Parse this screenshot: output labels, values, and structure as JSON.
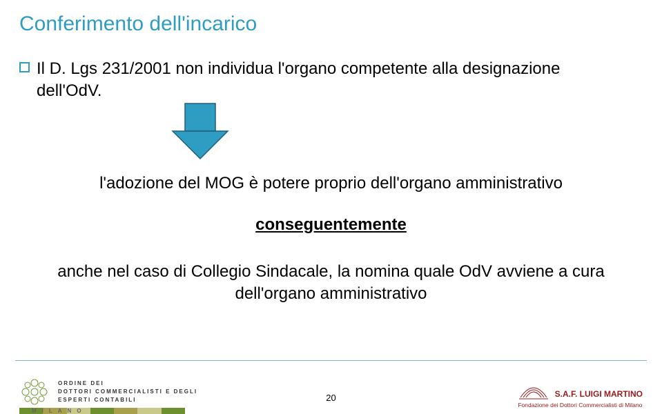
{
  "colors": {
    "title": "#2f9cc1",
    "bullet_border": "#2f9cc1",
    "arrow_fill": "#2f9cc1",
    "arrow_stroke": "#1f5f7a",
    "footer_line": "#87b6c9",
    "ornament": "#7a9a3a",
    "saf": "#9a1b1b",
    "milano_segments": [
      "#6d8f2e",
      "#a8a04a",
      "#c9c98a",
      "#6d8f2e",
      "#a8a04a",
      "#c9c98a",
      "#6d8f2e"
    ]
  },
  "title": {
    "text": "Conferimento dell'incarico"
  },
  "bullet": {
    "text": "Il D. Lgs 231/2001 non individua l'organo competente alla designazione dell'OdV."
  },
  "body": {
    "line1": "l'adozione del MOG è potere proprio dell'organo amministrativo",
    "line2": "conseguentemente",
    "line3a": "anche nel caso di Collegio Sindacale, la nomina quale OdV avviene a cura",
    "line3b": "dell'organo amministrativo"
  },
  "footer": {
    "page": "20",
    "left": {
      "line1": "ORDINE DEI",
      "line2": "DOTTORI COMMERCIALISTI E DEGLI",
      "line3": "ESPERTI CONTABILI",
      "city": "MILANO"
    },
    "right": {
      "saf": "S.A.F. LUIGI MARTINO",
      "fondazione": "Fondazione dei Dottori Commercialisti di Milano"
    }
  }
}
